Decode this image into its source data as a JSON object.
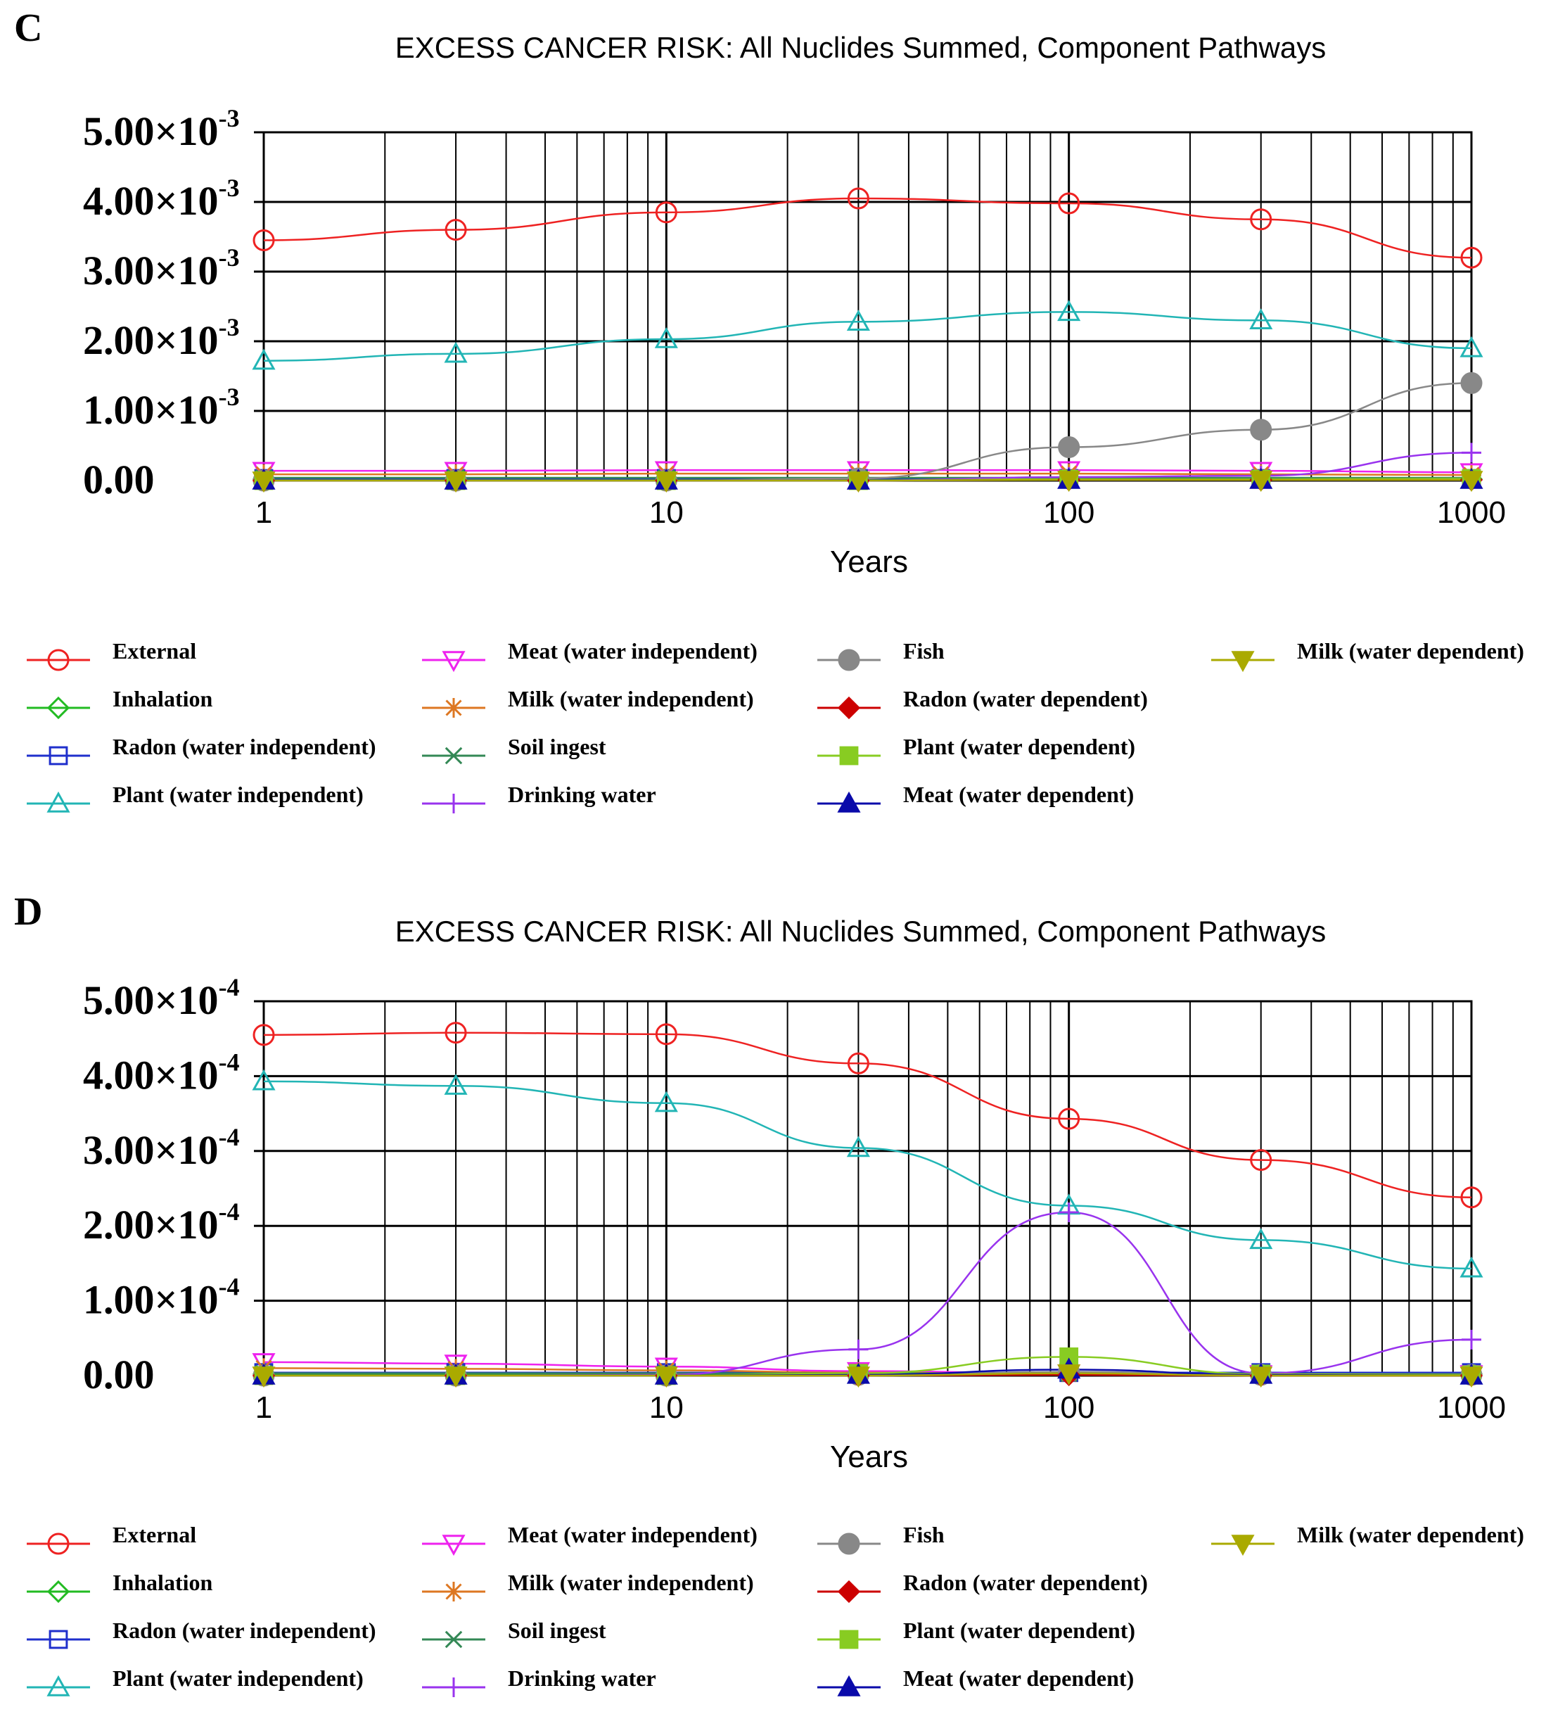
{
  "chart_data": [
    {
      "panel_label": "C",
      "type": "line",
      "title": "EXCESS CANCER RISK: All Nuclides Summed, Component Pathways",
      "xlabel": "Years",
      "x_scale": "log",
      "xlim": [
        1,
        1000
      ],
      "ylim": [
        0,
        0.005
      ],
      "x_ticks": [
        1,
        10,
        100,
        1000
      ],
      "x_tick_labels": [
        "1",
        "10",
        "100",
        "1000"
      ],
      "y_ticks": [
        0,
        0.001,
        0.002,
        0.003,
        0.004,
        0.005
      ],
      "y_tick_labels": [
        {
          "mantissa": "0.00",
          "exponent": ""
        },
        {
          "mantissa": "1.00×10",
          "exponent": "-3"
        },
        {
          "mantissa": "2.00×10",
          "exponent": "-3"
        },
        {
          "mantissa": "3.00×10",
          "exponent": "-3"
        },
        {
          "mantissa": "4.00×10",
          "exponent": "-3"
        },
        {
          "mantissa": "5.00×10",
          "exponent": "-3"
        }
      ],
      "legend_position": "bottom",
      "series": [
        {
          "name": "External",
          "color": "#ee2222",
          "marker": "circle",
          "filled": false,
          "x": [
            1,
            3,
            10,
            30,
            100,
            300,
            1000
          ],
          "y": [
            0.00345,
            0.0036,
            0.00385,
            0.00405,
            0.00398,
            0.00375,
            0.0032
          ]
        },
        {
          "name": "Inhalation",
          "color": "#22bb22",
          "marker": "diamond",
          "filled": false,
          "x": [
            1,
            3,
            10,
            30,
            100,
            300,
            1000
          ],
          "y": [
            2e-05,
            2e-05,
            2e-05,
            2e-05,
            2e-05,
            2e-05,
            2e-05
          ]
        },
        {
          "name": "Radon (water independent)",
          "color": "#1f2fcc",
          "marker": "square",
          "filled": false,
          "x": [
            1,
            3,
            10,
            30,
            100,
            300,
            1000
          ],
          "y": [
            3e-05,
            3e-05,
            3e-05,
            3e-05,
            3e-05,
            3e-05,
            3e-05
          ]
        },
        {
          "name": "Plant (water independent)",
          "color": "#22b5b5",
          "marker": "triangle-up",
          "filled": false,
          "x": [
            1,
            3,
            10,
            30,
            100,
            300,
            1000
          ],
          "y": [
            0.00172,
            0.00182,
            0.00203,
            0.00228,
            0.00242,
            0.0023,
            0.0019
          ]
        },
        {
          "name": "Meat (water independent)",
          "color": "#ee22ee",
          "marker": "triangle-down",
          "filled": false,
          "x": [
            1,
            3,
            10,
            30,
            100,
            300,
            1000
          ],
          "y": [
            0.00014,
            0.00014,
            0.00015,
            0.00015,
            0.00015,
            0.00014,
            0.00012
          ]
        },
        {
          "name": "Milk (water independent)",
          "color": "#dd7722",
          "marker": "asterisk",
          "filled": false,
          "x": [
            1,
            3,
            10,
            30,
            100,
            300,
            1000
          ],
          "y": [
            9e-05,
            9e-05,
            0.0001,
            0.0001,
            0.0001,
            9e-05,
            8e-05
          ]
        },
        {
          "name": "Soil ingest",
          "color": "#338855",
          "marker": "x",
          "filled": false,
          "x": [
            1,
            3,
            10,
            30,
            100,
            300,
            1000
          ],
          "y": [
            4e-05,
            4e-05,
            4e-05,
            4e-05,
            4e-05,
            4e-05,
            4e-05
          ]
        },
        {
          "name": "Drinking water",
          "color": "#9933ee",
          "marker": "plus",
          "filled": false,
          "x": [
            1,
            3,
            10,
            30,
            100,
            300,
            1000
          ],
          "y": [
            0,
            0,
            0,
            0,
            5e-05,
            7e-05,
            0.0004
          ]
        },
        {
          "name": "Fish",
          "color": "#888888",
          "marker": "circle",
          "filled": true,
          "x": [
            1,
            3,
            10,
            30,
            100,
            300,
            1000
          ],
          "y": [
            0,
            0,
            0,
            3e-05,
            0.00048,
            0.00073,
            0.0014
          ]
        },
        {
          "name": "Radon (water dependent)",
          "color": "#cc0000",
          "marker": "diamond",
          "filled": true,
          "x": [
            1,
            3,
            10,
            30,
            100,
            300,
            1000
          ],
          "y": [
            0,
            0,
            0,
            0,
            1e-05,
            1e-05,
            1e-05
          ]
        },
        {
          "name": "Plant (water dependent)",
          "color": "#88cc22",
          "marker": "square",
          "filled": true,
          "x": [
            1,
            3,
            10,
            30,
            100,
            300,
            1000
          ],
          "y": [
            0,
            0,
            0,
            0,
            2e-05,
            2e-05,
            3e-05
          ]
        },
        {
          "name": "Meat (water dependent)",
          "color": "#0a0aaa",
          "marker": "triangle-up",
          "filled": true,
          "x": [
            1,
            3,
            10,
            30,
            100,
            300,
            1000
          ],
          "y": [
            0,
            0,
            0,
            0,
            1e-05,
            1e-05,
            1e-05
          ]
        },
        {
          "name": "Milk (water dependent)",
          "color": "#aaaa00",
          "marker": "triangle-down",
          "filled": true,
          "x": [
            1,
            3,
            10,
            30,
            100,
            300,
            1000
          ],
          "y": [
            0,
            0,
            0,
            0,
            1e-05,
            1e-05,
            1e-05
          ]
        }
      ]
    },
    {
      "panel_label": "D",
      "type": "line",
      "title": "EXCESS CANCER RISK: All Nuclides Summed, Component Pathways",
      "xlabel": "Years",
      "x_scale": "log",
      "xlim": [
        1,
        1000
      ],
      "ylim": [
        0,
        0.0005
      ],
      "x_ticks": [
        1,
        10,
        100,
        1000
      ],
      "x_tick_labels": [
        "1",
        "10",
        "100",
        "1000"
      ],
      "y_ticks": [
        0,
        0.0001,
        0.0002,
        0.0003,
        0.0004,
        0.0005
      ],
      "y_tick_labels": [
        {
          "mantissa": "0.00",
          "exponent": ""
        },
        {
          "mantissa": "1.00×10",
          "exponent": "-4"
        },
        {
          "mantissa": "2.00×10",
          "exponent": "-4"
        },
        {
          "mantissa": "3.00×10",
          "exponent": "-4"
        },
        {
          "mantissa": "4.00×10",
          "exponent": "-4"
        },
        {
          "mantissa": "5.00×10",
          "exponent": "-4"
        }
      ],
      "legend_position": "bottom",
      "series": [
        {
          "name": "External",
          "color": "#ee2222",
          "marker": "circle",
          "filled": false,
          "x": [
            1,
            3,
            10,
            30,
            100,
            300,
            1000
          ],
          "y": [
            0.000455,
            0.000458,
            0.000456,
            0.000417,
            0.000343,
            0.000288,
            0.000238
          ]
        },
        {
          "name": "Inhalation",
          "color": "#22bb22",
          "marker": "diamond",
          "filled": false,
          "x": [
            1,
            3,
            10,
            30,
            100,
            300,
            1000
          ],
          "y": [
            2e-06,
            2e-06,
            2e-06,
            2e-06,
            2e-06,
            2e-06,
            2e-06
          ]
        },
        {
          "name": "Radon (water independent)",
          "color": "#1f2fcc",
          "marker": "square",
          "filled": false,
          "x": [
            1,
            3,
            10,
            30,
            100,
            300,
            1000
          ],
          "y": [
            4e-06,
            4e-06,
            4e-06,
            4e-06,
            4e-06,
            4e-06,
            4e-06
          ]
        },
        {
          "name": "Plant (water independent)",
          "color": "#22b5b5",
          "marker": "triangle-up",
          "filled": false,
          "x": [
            1,
            3,
            10,
            30,
            100,
            300,
            1000
          ],
          "y": [
            0.000393,
            0.000387,
            0.000364,
            0.000304,
            0.000227,
            0.000181,
            0.000143
          ]
        },
        {
          "name": "Meat (water independent)",
          "color": "#ee22ee",
          "marker": "triangle-down",
          "filled": false,
          "x": [
            1,
            3,
            10,
            30,
            100,
            300,
            1000
          ],
          "y": [
            1.8e-05,
            1.6e-05,
            1.2e-05,
            6e-06,
            3e-06,
            2e-06,
            2e-06
          ]
        },
        {
          "name": "Milk (water independent)",
          "color": "#dd7722",
          "marker": "asterisk",
          "filled": false,
          "x": [
            1,
            3,
            10,
            30,
            100,
            300,
            1000
          ],
          "y": [
            1e-05,
            9e-06,
            7e-06,
            4e-06,
            2e-06,
            1e-06,
            1e-06
          ]
        },
        {
          "name": "Soil ingest",
          "color": "#338855",
          "marker": "x",
          "filled": false,
          "x": [
            1,
            3,
            10,
            30,
            100,
            300,
            1000
          ],
          "y": [
            3e-06,
            3e-06,
            3e-06,
            3e-06,
            3e-06,
            2e-06,
            2e-06
          ]
        },
        {
          "name": "Drinking water",
          "color": "#9933ee",
          "marker": "plus",
          "filled": false,
          "x": [
            1,
            3,
            10,
            30,
            100,
            300,
            1000
          ],
          "y": [
            0,
            0,
            1e-06,
            3.5e-05,
            0.000218,
            3e-06,
            4.8e-05
          ]
        },
        {
          "name": "Fish",
          "color": "#888888",
          "marker": "circle",
          "filled": true,
          "x": [
            1,
            3,
            10,
            30,
            100,
            300,
            1000
          ],
          "y": [
            0,
            0,
            0,
            1e-06,
            5e-06,
            1e-06,
            1e-06
          ]
        },
        {
          "name": "Radon (water dependent)",
          "color": "#cc0000",
          "marker": "diamond",
          "filled": true,
          "x": [
            1,
            3,
            10,
            30,
            100,
            300,
            1000
          ],
          "y": [
            0,
            0,
            0,
            0,
            1e-06,
            0,
            0
          ]
        },
        {
          "name": "Plant (water dependent)",
          "color": "#88cc22",
          "marker": "square",
          "filled": true,
          "x": [
            1,
            3,
            10,
            30,
            100,
            300,
            1000
          ],
          "y": [
            0,
            0,
            0,
            3e-06,
            2.5e-05,
            2e-06,
            1e-06
          ]
        },
        {
          "name": "Meat (water dependent)",
          "color": "#0a0aaa",
          "marker": "triangle-up",
          "filled": true,
          "x": [
            1,
            3,
            10,
            30,
            100,
            300,
            1000
          ],
          "y": [
            0,
            0,
            0,
            1e-06,
            8e-06,
            1e-06,
            0
          ]
        },
        {
          "name": "Milk (water dependent)",
          "color": "#aaaa00",
          "marker": "triangle-down",
          "filled": true,
          "x": [
            1,
            3,
            10,
            30,
            100,
            300,
            1000
          ],
          "y": [
            0,
            0,
            0,
            0,
            3e-06,
            0,
            0
          ]
        }
      ]
    }
  ]
}
